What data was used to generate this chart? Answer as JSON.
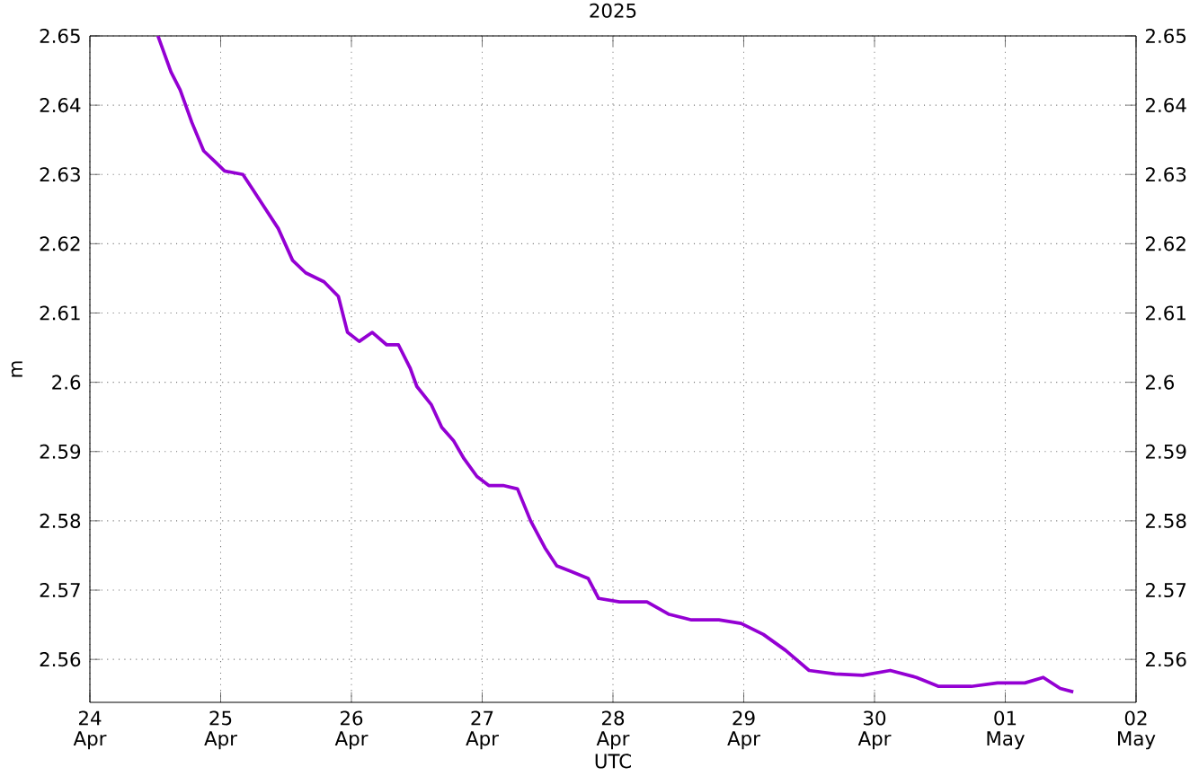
{
  "chart_data": {
    "type": "line",
    "title": "2025",
    "xlabel": "UTC",
    "ylabel": "m",
    "xlim": [
      "2025-04-24",
      "2025-05-02"
    ],
    "xticks": [
      {
        "value": "2025-04-24",
        "label": "24 Apr"
      },
      {
        "value": "2025-04-25",
        "label": "25 Apr"
      },
      {
        "value": "2025-04-26",
        "label": "26 Apr"
      },
      {
        "value": "2025-04-27",
        "label": "27 Apr"
      },
      {
        "value": "2025-04-28",
        "label": "28 Apr"
      },
      {
        "value": "2025-04-29",
        "label": "29 Apr"
      },
      {
        "value": "2025-04-30",
        "label": "30 Apr"
      },
      {
        "value": "2025-05-01",
        "label": "01 May"
      },
      {
        "value": "2025-05-02",
        "label": "02 May"
      }
    ],
    "ylim": [
      2.5538,
      2.65
    ],
    "yticks": [
      {
        "value": 2.56,
        "label": "2.56"
      },
      {
        "value": 2.57,
        "label": "2.57"
      },
      {
        "value": 2.58,
        "label": "2.58"
      },
      {
        "value": 2.59,
        "label": "2.59"
      },
      {
        "value": 2.6,
        "label": "2.6"
      },
      {
        "value": 2.61,
        "label": "2.61"
      },
      {
        "value": 2.62,
        "label": "2.62"
      },
      {
        "value": 2.63,
        "label": "2.63"
      },
      {
        "value": 2.64,
        "label": "2.64"
      },
      {
        "value": 2.65,
        "label": "2.65"
      }
    ],
    "y2lim": [
      2.5538,
      2.65
    ],
    "y2ticks": [
      {
        "value": 2.56,
        "label": "2.56"
      },
      {
        "value": 2.57,
        "label": "2.57"
      },
      {
        "value": 2.58,
        "label": "2.58"
      },
      {
        "value": 2.59,
        "label": "2.59"
      },
      {
        "value": 2.6,
        "label": "2.6"
      },
      {
        "value": 2.61,
        "label": "2.61"
      },
      {
        "value": 2.62,
        "label": "2.62"
      },
      {
        "value": 2.63,
        "label": "2.63"
      },
      {
        "value": 2.64,
        "label": "2.64"
      },
      {
        "value": 2.65,
        "label": "2.65"
      }
    ],
    "grid": true,
    "marker": "none",
    "line_style": "solid",
    "x": [
      "2025-04-24T12:29",
      "2025-04-24T14:53",
      "2025-04-24T16:34",
      "2025-04-24T18:43",
      "2025-04-24T20:53",
      "2025-04-24T23:02",
      "2025-04-25T00:43",
      "2025-04-25T04:05",
      "2025-04-25T05:46",
      "2025-04-25T07:55",
      "2025-04-25T10:34",
      "2025-04-25T13:12",
      "2025-04-25T15:36",
      "2025-04-25T18:58",
      "2025-04-25T21:36",
      "2025-04-25T23:17",
      "2025-04-26T01:26",
      "2025-04-26T03:50",
      "2025-04-26T06:29",
      "2025-04-26T08:38",
      "2025-04-26T10:48",
      "2025-04-26T12:00",
      "2025-04-26T14:38",
      "2025-04-26T16:34",
      "2025-04-26T18:43",
      "2025-04-26T20:38",
      "2025-04-26T23:02",
      "2025-04-27T01:12",
      "2025-04-27T03:50",
      "2025-04-27T06:29",
      "2025-04-27T08:53",
      "2025-04-27T11:31",
      "2025-04-27T13:41",
      "2025-04-27T16:19",
      "2025-04-27T19:26",
      "2025-04-27T21:22",
      "2025-04-28T01:12",
      "2025-04-28T06:14",
      "2025-04-28T10:19",
      "2025-04-28T14:24",
      "2025-04-28T19:26",
      "2025-04-28T23:31",
      "2025-04-29T03:36",
      "2025-04-29T07:41",
      "2025-04-29T12:00",
      "2025-04-29T16:48",
      "2025-04-29T21:50",
      "2025-04-30T02:53",
      "2025-04-30T07:41",
      "2025-04-30T11:46",
      "2025-04-30T17:46",
      "2025-04-30T22:34",
      "2025-05-01T03:36",
      "2025-05-01T06:58",
      "2025-05-01T10:05",
      "2025-05-01T12:29"
    ],
    "series": [
      {
        "color": "#9400d3",
        "values": [
          2.65,
          2.6448,
          2.6422,
          2.6375,
          2.6334,
          2.6318,
          2.6305,
          2.63,
          2.628,
          2.6254,
          2.6222,
          2.6176,
          2.6158,
          2.6145,
          2.6124,
          2.6072,
          2.6059,
          2.6072,
          2.6054,
          2.6054,
          2.602,
          2.5994,
          2.5968,
          2.5935,
          2.5916,
          2.589,
          2.5864,
          2.5851,
          2.5851,
          2.5846,
          2.58,
          2.5761,
          2.5735,
          2.5727,
          2.5717,
          2.5688,
          2.5683,
          2.5683,
          2.5665,
          2.5657,
          2.5657,
          2.5652,
          2.5636,
          2.5613,
          2.5584,
          2.5579,
          2.5577,
          2.5584,
          2.5574,
          2.5561,
          2.5561,
          2.5566,
          2.5566,
          2.5574,
          2.5558,
          2.5553
        ]
      }
    ]
  }
}
